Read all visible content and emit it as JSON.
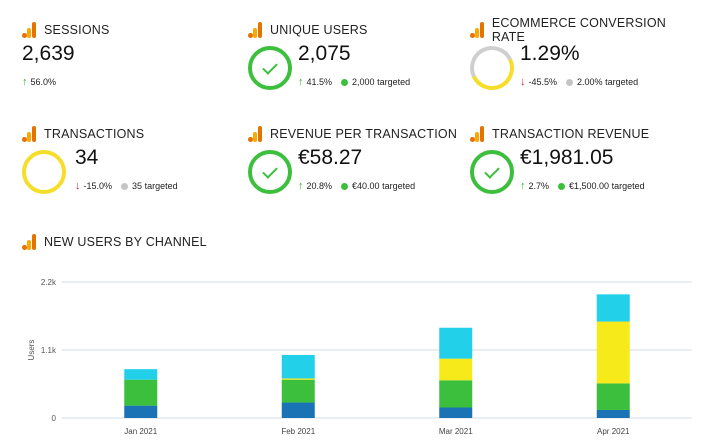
{
  "kpis": [
    {
      "title": "SESSIONS",
      "value": "2,639",
      "change": "56.0%",
      "direction": "up",
      "ring": null,
      "target": null
    },
    {
      "title": "UNIQUE USERS",
      "value": "2,075",
      "change": "41.5%",
      "direction": "up",
      "ring": "green",
      "target": "2,000",
      "target_label": "targeted",
      "target_dot": "green"
    },
    {
      "title": "ECOMMERCE CONVERSION RATE",
      "value": "1.29%",
      "change": "-45.5%",
      "direction": "down",
      "ring": "grey-yellow",
      "target": "2.00%",
      "target_label": "targeted",
      "target_dot": "grey"
    },
    {
      "title": "TRANSACTIONS",
      "value": "34",
      "change": "-15.0%",
      "direction": "down",
      "ring": "yellow",
      "target": "35",
      "target_label": "targeted",
      "target_dot": "grey"
    },
    {
      "title": "REVENUE PER TRANSACTION",
      "value": "€58.27",
      "change": "20.8%",
      "direction": "up",
      "ring": "green",
      "target": "€40.00",
      "target_label": "targeted",
      "target_dot": "green"
    },
    {
      "title": "TRANSACTION REVENUE",
      "value": "€1,981.05",
      "change": "2.7%",
      "direction": "up",
      "ring": "green",
      "target": "€1,500.00",
      "target_label": "targeted",
      "target_dot": "green"
    }
  ],
  "chart_title": "NEW USERS BY CHANNEL",
  "chart_data": {
    "type": "bar",
    "stacked": true,
    "categories": [
      "Jan 2021",
      "Feb 2021",
      "Mar 2021",
      "Apr 2021"
    ],
    "ylabel": "Users",
    "ylim": [
      0,
      2200
    ],
    "yticks": [
      {
        "value": 0,
        "label": "0"
      },
      {
        "value": 1100,
        "label": "1.1k"
      },
      {
        "value": 2200,
        "label": "2.2k"
      }
    ],
    "grid": true,
    "series": [
      {
        "color": "#1a73b5",
        "values": [
          200,
          250,
          170,
          130
        ]
      },
      {
        "color": "#3cbf3c",
        "values": [
          420,
          370,
          440,
          430
        ]
      },
      {
        "color": "#f7ea1a",
        "values": [
          0,
          20,
          350,
          1000
        ]
      },
      {
        "color": "#22d0ea",
        "values": [
          170,
          380,
          500,
          440
        ]
      }
    ]
  },
  "colors": {
    "up": "#2fb52f",
    "down": "#d6223a",
    "accent": "#e37400"
  }
}
